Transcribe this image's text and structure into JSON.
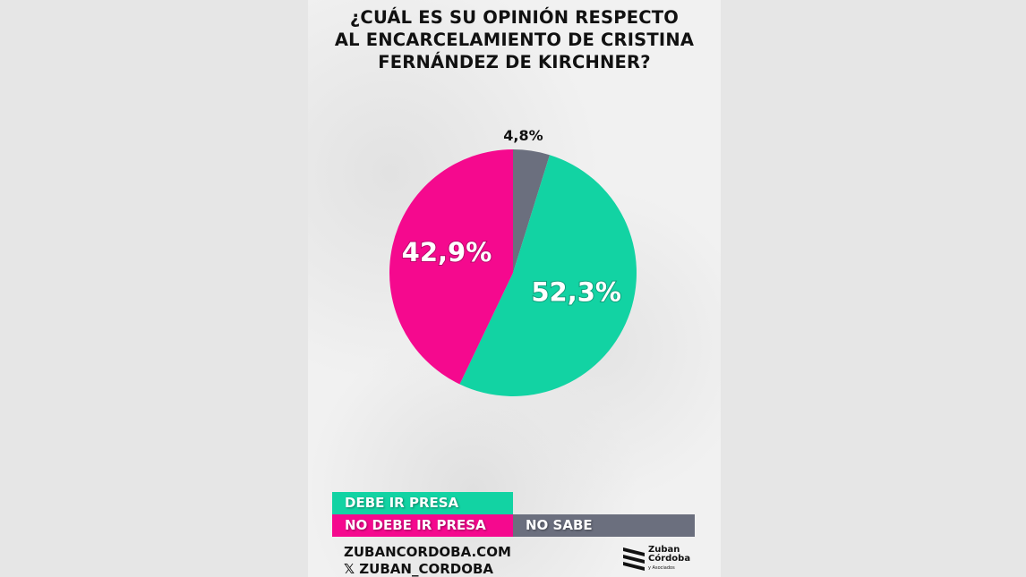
{
  "chart_data": {
    "type": "pie",
    "title_lines": [
      "¿CUÁL ES SU OPINIÓN RESPECTO",
      "AL ENCARCELAMIENTO DE CRISTINA",
      "FERNÁNDEZ DE KIRCHNER?"
    ],
    "start": "top",
    "direction": "clockwise",
    "slices": [
      {
        "name": "NO SABE",
        "value": 4.8,
        "label": "4,8%",
        "color": "#6b6f7e"
      },
      {
        "name": "DEBE IR PRESA",
        "value": 52.3,
        "label": "52,3%",
        "color": "#12d3a3"
      },
      {
        "name": "NO DEBE IR PRESA",
        "value": 42.9,
        "label": "42,9%",
        "color": "#f5098e"
      }
    ],
    "legend_placement": "bottom"
  },
  "footer": {
    "website": "ZUBANCORDOBA.COM",
    "social": "𝕏 ZUBAN_CORDOBA",
    "logo_line1": "Zuban",
    "logo_line2": "Córdoba",
    "logo_line3": "y Asociados"
  }
}
